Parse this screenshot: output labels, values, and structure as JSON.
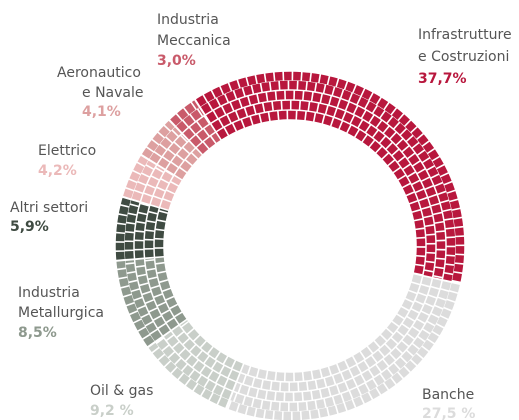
{
  "chart_data": {
    "type": "donut",
    "categories": [
      [
        "Infrastrutture",
        "e Costruzioni"
      ],
      [
        "Banche"
      ],
      [
        "Oil & gas"
      ],
      [
        "Industria",
        "Metallurgica"
      ],
      [
        "Altri settori"
      ],
      [
        "Elettrico"
      ],
      [
        "Aeronautico",
        "e Navale"
      ],
      [
        "Industria",
        "Meccanica"
      ]
    ],
    "values": [
      37.7,
      27.5,
      9.2,
      8.5,
      5.9,
      4.2,
      4.1,
      3.0
    ],
    "value_labels": [
      "37,7%",
      "27,5 %",
      "9,2 %",
      "8,5%",
      "5,9%",
      "4,2%",
      "4,1%",
      "3,0%"
    ],
    "colors": [
      "#b8173d",
      "#dcdcdc",
      "#c9cfc9",
      "#8e998e",
      "#3f4b42",
      "#ebb9b9",
      "#dda0a0",
      "#c95a6a"
    ]
  }
}
